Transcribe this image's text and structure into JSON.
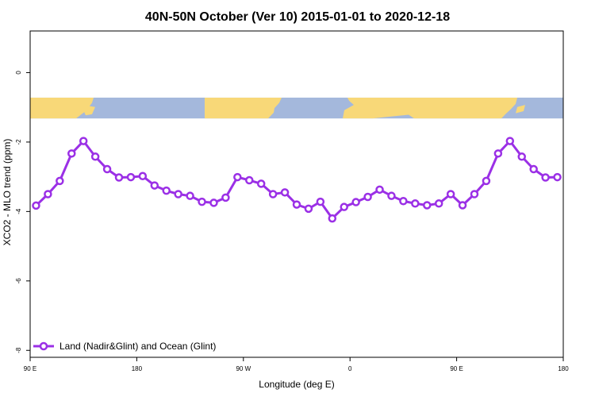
{
  "colors": {
    "series": "#9b30e6",
    "ocean": "#a4b8dc",
    "land": "#f8d878",
    "axis": "#000000",
    "background": "#ffffff"
  },
  "chart_data": {
    "type": "line",
    "title": "40N-50N October (Ver 10)   2015-01-01 to 2020-12-18",
    "xlabel": "Longitude (deg E)",
    "ylabel": "XCO2 - MLO trend (ppm)",
    "xlim": [
      90,
      540
    ],
    "ylim": [
      -8.2,
      1.2
    ],
    "x_ticks": [
      {
        "value": 90,
        "label": "90 E"
      },
      {
        "value": 180,
        "label": "180"
      },
      {
        "value": 270,
        "label": "90 W"
      },
      {
        "value": 360,
        "label": "0"
      },
      {
        "value": 450,
        "label": "90 E"
      },
      {
        "value": 540,
        "label": "180"
      }
    ],
    "y_ticks": [
      {
        "value": 0,
        "label": "0"
      },
      {
        "value": -2,
        "label": "-2"
      },
      {
        "value": -4,
        "label": "-4"
      },
      {
        "value": -6,
        "label": "-6"
      },
      {
        "value": -8,
        "label": "-8"
      }
    ],
    "grid": false,
    "legend_position": "bottom-left",
    "map_strip": {
      "ymin": -1.32,
      "ymax": -0.72
    },
    "series": [
      {
        "name": "Land (Nadir&Glint) and Ocean (Glint)",
        "x": [
          95,
          105,
          115,
          125,
          135,
          145,
          155,
          165,
          175,
          185,
          195,
          205,
          215,
          225,
          235,
          245,
          255,
          265,
          275,
          285,
          295,
          305,
          315,
          325,
          335,
          345,
          355,
          365,
          375,
          385,
          395,
          405,
          415,
          425,
          435,
          445,
          455,
          465,
          475,
          485,
          495,
          505,
          515,
          525,
          535
        ],
        "y": [
          -3.83,
          -3.5,
          -3.12,
          -2.33,
          -1.97,
          -2.42,
          -2.78,
          -3.02,
          -3.01,
          -2.98,
          -3.25,
          -3.4,
          -3.5,
          -3.55,
          -3.72,
          -3.75,
          -3.6,
          -3.01,
          -3.1,
          -3.2,
          -3.5,
          -3.45,
          -3.8,
          -3.92,
          -3.72,
          -4.2,
          -3.87,
          -3.73,
          -3.58,
          -3.37,
          -3.55,
          -3.7,
          -3.77,
          -3.82,
          -3.77,
          -3.5,
          -3.82,
          -3.5,
          -3.12,
          -2.33,
          -1.97,
          -2.42,
          -2.78,
          -3.02,
          -3.01
        ]
      }
    ]
  }
}
